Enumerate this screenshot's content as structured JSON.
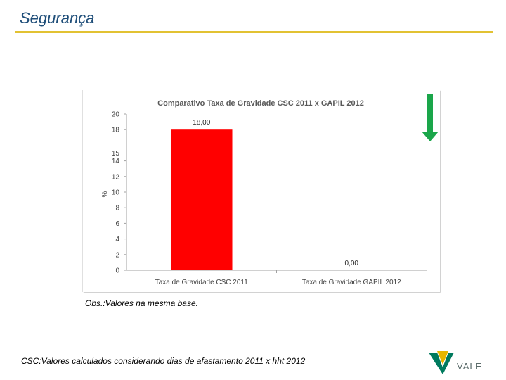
{
  "slide": {
    "title": "Segurança",
    "accent_color": "#e2c233",
    "title_color": "#1f4e79"
  },
  "chart_data": {
    "type": "bar",
    "title": "Comparativo Taxa de Gravidade CSC 2011 x GAPIL 2012",
    "xlabel": "",
    "ylabel": "%",
    "ylim": [
      0,
      20
    ],
    "yticks": [
      0,
      2,
      4,
      6,
      8,
      10,
      12,
      14,
      15,
      18,
      20
    ],
    "ytick_labels": [
      "0",
      "2",
      "4",
      "6",
      "8",
      "10",
      "12",
      "14",
      "15",
      "18",
      "20"
    ],
    "categories": [
      "Taxa de Gravidade CSC 2011",
      "Taxa de Gravidade GAPIL 2012"
    ],
    "values": [
      18.0,
      0.0
    ],
    "value_labels": [
      "18,00",
      "0,00"
    ],
    "bar_color": "#ff0000",
    "grid": false
  },
  "indicator": {
    "icon": "down-arrow-icon",
    "color": "#1aa64a"
  },
  "notes": {
    "obs": "Obs.:Valores na mesma base.",
    "footnote": "CSC:Valores calculados considerando dias de afastamento 2011 x hht 2012"
  },
  "logo": {
    "text": "VALE",
    "color_green": "#007a5e",
    "color_yellow": "#e8b600"
  }
}
